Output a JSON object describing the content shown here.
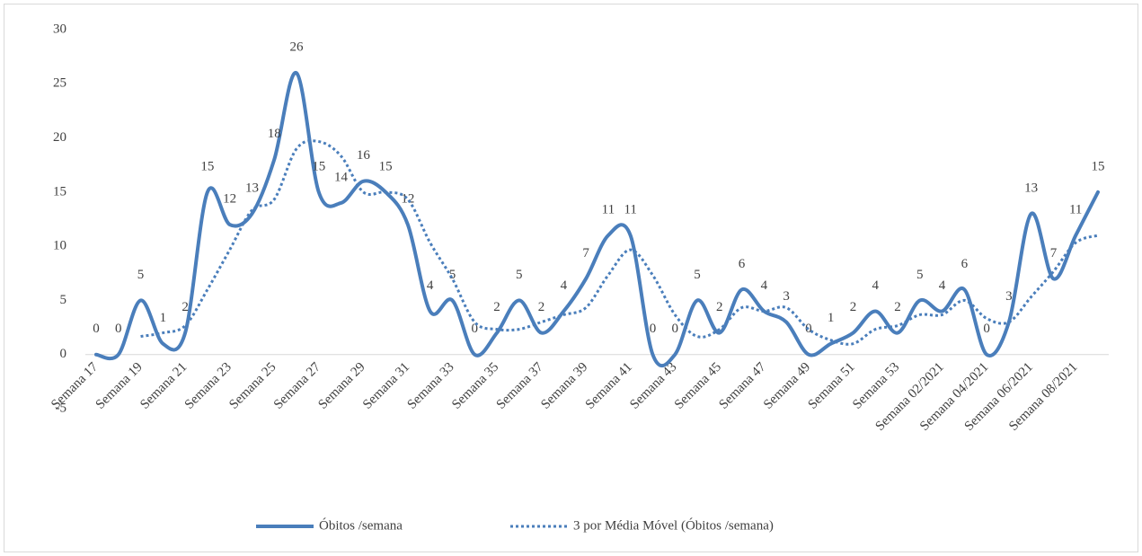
{
  "chart_data": {
    "type": "line",
    "categories": [
      "Semana 17",
      null,
      "Semana 19",
      null,
      "Semana 21",
      null,
      "Semana 23",
      null,
      "Semana 25",
      null,
      "Semana 27",
      null,
      "Semana 29",
      null,
      "Semana 31",
      null,
      "Semana 33",
      null,
      "Semana 35",
      null,
      "Semana 37",
      null,
      "Semana 39",
      null,
      "Semana 41",
      null,
      "Semana 43",
      null,
      "Semana 45",
      null,
      "Semana 47",
      null,
      "Semana 49",
      null,
      "Semana 51",
      null,
      "Semana 53",
      null,
      "Semana 02/2021",
      null,
      "Semana 04/2021",
      null,
      "Semana 06/2021",
      null,
      "Semana 08/2021",
      null
    ],
    "series": [
      {
        "name": "Óbitos /semana",
        "color": "#4a7ebb",
        "style": "solid",
        "data_labels": true,
        "values": [
          0,
          0,
          5,
          1,
          2,
          15,
          12,
          13,
          18,
          26,
          15,
          14,
          16,
          15,
          12,
          4,
          5,
          0,
          2,
          5,
          2,
          4,
          7,
          11,
          11,
          0,
          0,
          5,
          2,
          6,
          4,
          3,
          0,
          1,
          2,
          4,
          2,
          5,
          4,
          6,
          0,
          3,
          13,
          7,
          11,
          15
        ]
      },
      {
        "name": "3 por Média Móvel (Óbitos /semana)",
        "color": "#4a7ebb",
        "style": "dotted",
        "data_labels": false,
        "values": [
          null,
          null,
          1.67,
          2,
          2.67,
          6,
          9.67,
          13.33,
          14.33,
          19,
          19.67,
          18.33,
          15,
          15,
          14.33,
          10.33,
          7,
          3,
          2.33,
          2.33,
          3,
          3.67,
          4.33,
          7.33,
          9.67,
          7.33,
          3.67,
          1.67,
          2.33,
          4.33,
          4,
          4.33,
          2.33,
          1.33,
          1,
          2.33,
          2.67,
          3.67,
          3.67,
          5,
          3.33,
          3,
          5.33,
          7.67,
          10.33,
          11
        ]
      }
    ],
    "ylim": [
      -5,
      30
    ],
    "yticks": [
      -5,
      0,
      5,
      10,
      15,
      20,
      25,
      30
    ],
    "grid": false,
    "smooth": true,
    "legend": "bottom"
  }
}
